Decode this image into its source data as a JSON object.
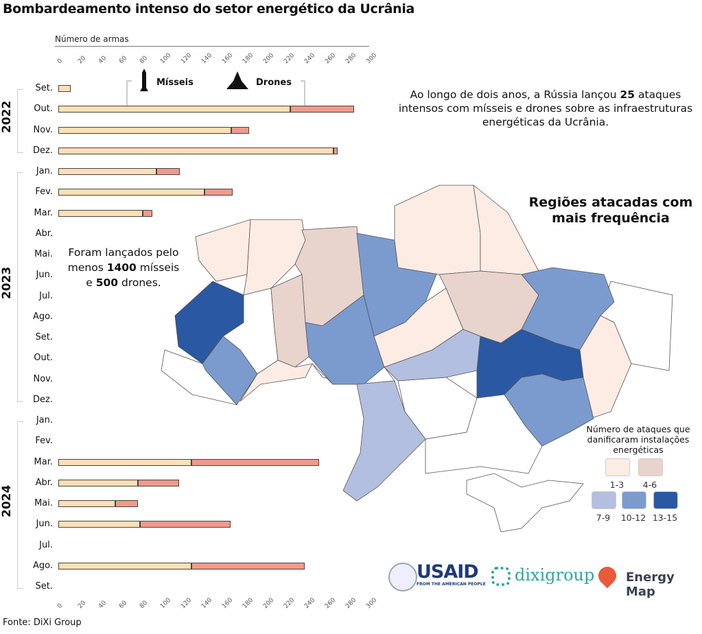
{
  "title": "Bombardeamento intenso do setor energético da Ucrânia",
  "intro": {
    "before": "Ao longo de dois anos, a Rússia lançou ",
    "bold": "25",
    "after": " ataques intensos com mísseis e drones sobre as infraestruturas energéticas da Ucrânia."
  },
  "summary": {
    "l1": "Foram lançados pelo menos ",
    "n1": "1400",
    "l2": " mísseis e ",
    "n2": "500",
    "l3": " drones."
  },
  "regions_title": "Regiões atacadas com mais frequência",
  "legend": {
    "title": "Número de ataques que danificaram instalações energéticas",
    "items": [
      {
        "label": "1-3",
        "color": "#fdece4"
      },
      {
        "label": "4-6",
        "color": "#e8d3cd"
      },
      {
        "label": "7-9",
        "color": "#b2bfe0"
      },
      {
        "label": "10-12",
        "color": "#7b9bcf"
      },
      {
        "label": "13-15",
        "color": "#2a58a3"
      }
    ]
  },
  "source": "Fonte: DiXi Group",
  "logos": {
    "usaid": "USAID",
    "usaid_sub": "FROM THE AMERICAN PEOPLE",
    "dixi": "dixigroup",
    "energy_map": "Energy Map"
  },
  "colors": {
    "missiles": "#fde0b5",
    "drones": "#f09a8a"
  },
  "chart_data": {
    "type": "bar",
    "orientation": "horizontal",
    "stacked": true,
    "xlabel": "Número de armas",
    "xlim": [
      0,
      300
    ],
    "xticks": [
      0,
      20,
      40,
      60,
      80,
      100,
      120,
      140,
      160,
      180,
      200,
      220,
      240,
      260,
      280,
      300
    ],
    "series_labels": {
      "missiles": "Mísseis",
      "drones": "Drones"
    },
    "years": [
      {
        "label": "2022",
        "from": 0,
        "to": 3
      },
      {
        "label": "2023",
        "from": 4,
        "to": 15
      },
      {
        "label": "2024",
        "from": 16,
        "to": 24
      }
    ],
    "categories": [
      "Set.",
      "Out.",
      "Nov.",
      "Dez.",
      "Jan.",
      "Fev.",
      "Mar.",
      "Abr.",
      "Mai.",
      "Jun.",
      "Jul.",
      "Ago.",
      "Set.",
      "Out.",
      "Nov.",
      "Dez.",
      "Jan.",
      "Fev.",
      "Mar.",
      "Abr.",
      "Mai.",
      "Jun.",
      "Jul.",
      "Ago.",
      "Set."
    ],
    "series": [
      {
        "name": "Mísseis",
        "values": [
          12,
          225,
          168,
          267,
          95,
          142,
          82,
          0,
          0,
          0,
          0,
          0,
          0,
          0,
          0,
          0,
          0,
          0,
          129,
          77,
          55,
          79,
          0,
          129,
          0
        ]
      },
      {
        "name": "Drones",
        "values": [
          0,
          62,
          17,
          4,
          23,
          27,
          9,
          0,
          0,
          0,
          0,
          0,
          0,
          0,
          0,
          0,
          0,
          0,
          124,
          40,
          22,
          88,
          0,
          110,
          0
        ]
      }
    ]
  }
}
